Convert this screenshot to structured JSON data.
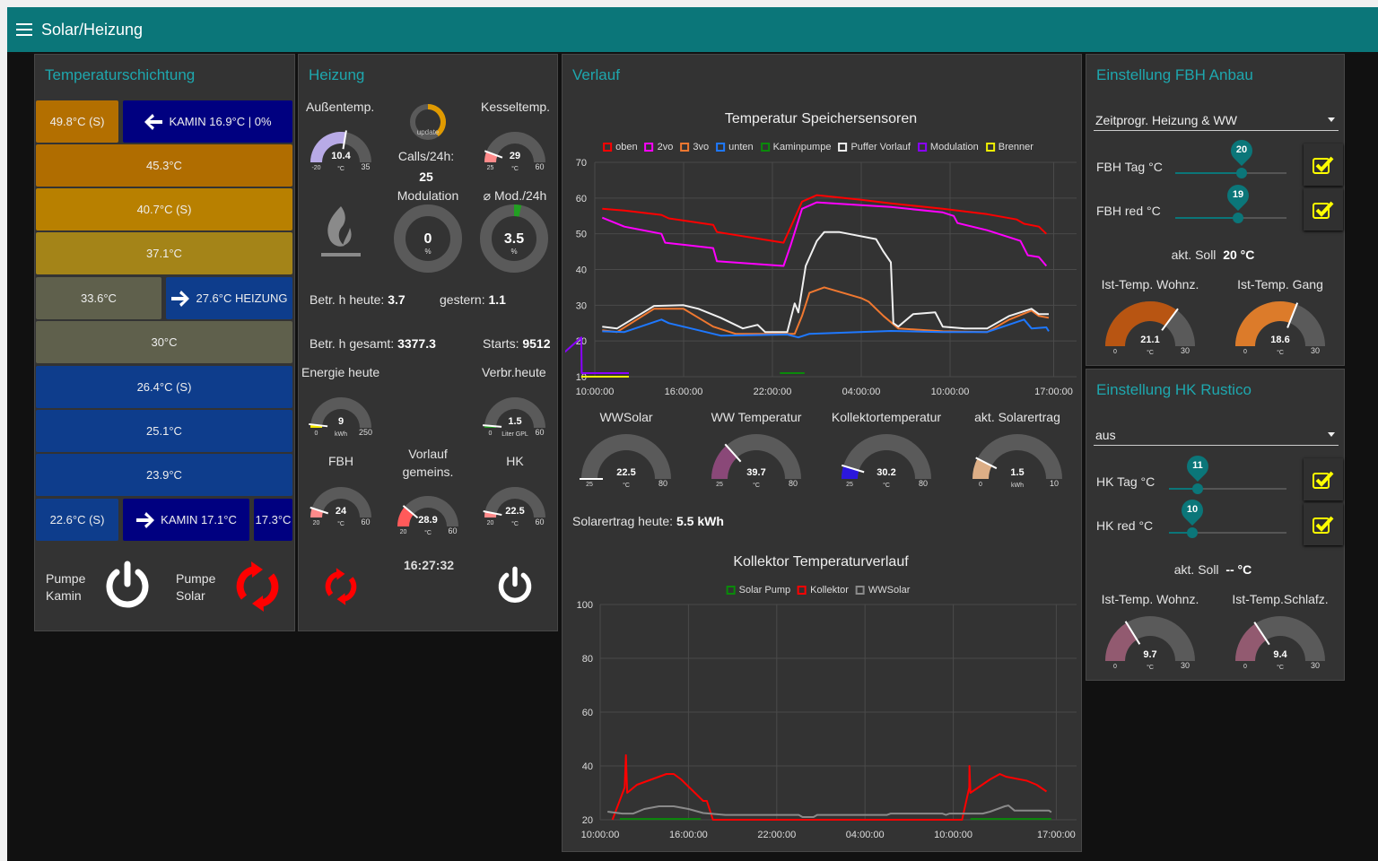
{
  "header": {
    "title": "Solar/Heizung",
    "menu_icon": "hamburger-icon"
  },
  "colors": {
    "accent": "#0b7679",
    "title": "#1ea7ae",
    "panel": "#333333"
  },
  "schichtung": {
    "title": "Temperaturschichtung",
    "row1": {
      "left": "49.8°C (S)",
      "right": "KAMIN 16.9°C | 0%"
    },
    "rows": [
      "45.3°C",
      "40.7°C (S)",
      "37.1°C"
    ],
    "row5": {
      "left": "33.6°C",
      "right": "27.6°C HEIZUNG"
    },
    "row6": "30°C",
    "rows2": [
      "26.4°C (S)",
      "25.1°C",
      "23.9°C"
    ],
    "row10": {
      "left": "22.6°C (S)",
      "mid": "KAMIN 17.1°C",
      "right": "17.3°C"
    },
    "pumpe_kamin": "Pumpe\nKamin",
    "pumpe_solar": "Pumpe\nSolar",
    "pumpe_kamin_state": "off",
    "pumpe_solar_state": "running"
  },
  "heizung": {
    "title": "Heizung",
    "aussen_label": "Außentemp.",
    "kessel_label": "Kesseltemp.",
    "calls_label": "Calls/24h:",
    "calls": "25",
    "update_label": "update",
    "modulation_label": "Modulation",
    "mod24_label": "⌀ Mod./24h",
    "betr_heute_label": "Betr. h heute:",
    "betr_heute": "3.7",
    "gestern_label": "gestern:",
    "gestern": "1.1",
    "betr_gesamt_label": "Betr. h gesamt:",
    "betr_gesamt": "3377.3",
    "starts_label": "Starts:",
    "starts": "9512",
    "energie_label": "Energie heute",
    "verbr_label": "Verbr.heute",
    "fbh_label": "FBH",
    "vorlauf_label": "Vorlauf\ngemeins.",
    "hk_label": "HK",
    "time": "16:27:32",
    "pump_state": "running",
    "burner_power": "off"
  },
  "gauges": {
    "aussen": {
      "value": 10.4,
      "display": "10.4",
      "min": -20,
      "max": 35,
      "unit": "°C",
      "color": "#b8aae6"
    },
    "kessel": {
      "value": 29,
      "display": "29",
      "min": 25,
      "max": 60,
      "unit": "°C",
      "color": "#ff8a8a"
    },
    "energie": {
      "value": 9,
      "display": "9",
      "min": 0,
      "max": 250,
      "unit": "kWh",
      "color": "#f2e600"
    },
    "verbr": {
      "value": 1.5,
      "display": "1.5",
      "min": 0,
      "max": 60,
      "unit": "Liter GPL",
      "color": "#1f9a1f"
    },
    "fbh": {
      "value": 24,
      "display": "24",
      "min": 20,
      "max": 60,
      "unit": "°C",
      "color": "#ff8a8a"
    },
    "vorlauf": {
      "value": 28.9,
      "display": "28.9",
      "min": 20,
      "max": 60,
      "unit": "°C",
      "color": "#ff5a5a"
    },
    "hk": {
      "value": 22.5,
      "display": "22.5",
      "min": 20,
      "max": 60,
      "unit": "°C",
      "color": "#ff8a8a"
    },
    "wwsolar": {
      "value": 22.5,
      "display": "22.5",
      "min": 25,
      "max": 80,
      "unit": "°C",
      "color": "#eeeeee"
    },
    "wwtemp": {
      "value": 39.7,
      "display": "39.7",
      "min": 25,
      "max": 80,
      "unit": "°C",
      "color": "#8a4878"
    },
    "kollektor": {
      "value": 30.2,
      "display": "30.2",
      "min": 25,
      "max": 80,
      "unit": "°C",
      "color": "#2b17dc"
    },
    "solarertrag": {
      "value": 1.5,
      "display": "1.5",
      "min": 0,
      "max": 10,
      "unit": "kWh",
      "color": "#dcae86"
    },
    "fbh_wohnz": {
      "value": 21.1,
      "display": "21.1",
      "min": 0,
      "max": 30,
      "unit": "°C",
      "color": "#b85512"
    },
    "fbh_gang": {
      "value": 18.6,
      "display": "18.6",
      "min": 0,
      "max": 30,
      "unit": "°C",
      "color": "#dc7b2a"
    },
    "hk_wohnz": {
      "value": 9.7,
      "display": "9.7",
      "min": 0,
      "max": 30,
      "unit": "°C",
      "color": "#925a70"
    },
    "hk_schlafz": {
      "value": 9.4,
      "display": "9.4",
      "min": 0,
      "max": 30,
      "unit": "°C",
      "color": "#925a70"
    }
  },
  "donuts": {
    "update": {
      "value": 40,
      "display": "",
      "unit": "",
      "color": "#e09a00"
    },
    "modulation": {
      "value": 0,
      "display": "0",
      "unit": "%",
      "color": "#22a022"
    },
    "mod24": {
      "value": 3.5,
      "display": "3.5",
      "unit": "%",
      "color": "#22a022"
    }
  },
  "verlauf": {
    "title": "Verlauf",
    "ww_labels": {
      "wwsolar": "WWSolar",
      "wwtemp": "WW Temperatur",
      "kollektor": "Kollektortemperatur",
      "solarertrag": "akt. Solarertrag"
    },
    "solar_heute_label": "Solarertrag heute:",
    "solar_heute": "5.5 kWh"
  },
  "chart_data": [
    {
      "type": "line",
      "title": "Temperatur Speichersensoren",
      "ylim": [
        10,
        70
      ],
      "yticks": [
        10,
        20,
        30,
        40,
        50,
        60,
        70
      ],
      "xticks": [
        "10:00:00",
        "16:00:00",
        "22:00:00",
        "04:00:00",
        "10:00:00",
        "17:00:00"
      ],
      "grid": true,
      "legend": "top",
      "series": [
        {
          "name": "oben",
          "color": "#ff0000",
          "points": [
            [
              "10:30",
              57
            ],
            [
              "12:00",
              56.5
            ],
            [
              "14:30",
              55.3
            ],
            [
              "15:00",
              54.3
            ],
            [
              "18:00",
              52.5
            ],
            [
              "18:15",
              50.5
            ],
            [
              "22:45",
              47.5
            ],
            [
              "23:15",
              52
            ],
            [
              "00:00",
              59
            ],
            [
              "01:00",
              60.8
            ],
            [
              "04:00",
              59.5
            ],
            [
              "06:00",
              58.5
            ],
            [
              "09:30",
              57
            ],
            [
              "12:30",
              55.5
            ],
            [
              "14:30",
              54
            ],
            [
              "15:00",
              52.8
            ],
            [
              "16:00",
              52
            ],
            [
              "16:30",
              50
            ]
          ]
        },
        {
          "name": "2vo",
          "color": "#ff00ff",
          "points": [
            [
              "10:30",
              54.5
            ],
            [
              "12:00",
              52
            ],
            [
              "14:30",
              50
            ],
            [
              "14:45",
              47.5
            ],
            [
              "18:00",
              46
            ],
            [
              "18:15",
              42.3
            ],
            [
              "22:45",
              41
            ],
            [
              "23:15",
              47
            ],
            [
              "00:00",
              57
            ],
            [
              "01:00",
              58.8
            ],
            [
              "04:00",
              58
            ],
            [
              "06:00",
              57.5
            ],
            [
              "09:30",
              56
            ],
            [
              "10:15",
              55
            ],
            [
              "10:30",
              53
            ],
            [
              "12:30",
              51
            ],
            [
              "14:00",
              49
            ],
            [
              "14:45",
              48
            ],
            [
              "15:15",
              44
            ],
            [
              "16:00",
              43.5
            ],
            [
              "16:30",
              41
            ]
          ]
        },
        {
          "name": "3vo",
          "color": "#f07830",
          "points": [
            [
              "10:30",
              23
            ],
            [
              "11:30",
              22.5
            ],
            [
              "14:00",
              29
            ],
            [
              "16:00",
              29
            ],
            [
              "18:00",
              24
            ],
            [
              "19:30",
              22
            ],
            [
              "23:30",
              22
            ],
            [
              "00:00",
              27
            ],
            [
              "00:30",
              33.5
            ],
            [
              "01:30",
              35
            ],
            [
              "04:00",
              32
            ],
            [
              "04:30",
              31
            ],
            [
              "05:30",
              27
            ],
            [
              "06:30",
              23.5
            ],
            [
              "09:30",
              22.7
            ],
            [
              "12:30",
              22.5
            ],
            [
              "14:00",
              26
            ],
            [
              "15:30",
              28.5
            ],
            [
              "16:00",
              27
            ],
            [
              "16:40",
              26.5
            ]
          ]
        },
        {
          "name": "unten",
          "color": "#1e78ff",
          "points": [
            [
              "10:30",
              22.7
            ],
            [
              "12:00",
              22.5
            ],
            [
              "14:30",
              26
            ],
            [
              "15:00",
              25
            ],
            [
              "17:00",
              23
            ],
            [
              "18:30",
              21.5
            ],
            [
              "23:00",
              21.8
            ],
            [
              "23:45",
              21
            ],
            [
              "00:30",
              22
            ],
            [
              "06:00",
              22.8
            ],
            [
              "09:30",
              22.5
            ],
            [
              "12:30",
              22.5
            ],
            [
              "15:00",
              26
            ],
            [
              "15:30",
              23.5
            ],
            [
              "16:30",
              23.8
            ],
            [
              "16:40",
              22.7
            ]
          ]
        },
        {
          "name": "Kaminpumpe",
          "color": "#0a8a0a",
          "points": [
            [
              "22:30",
              11
            ],
            [
              "00:10",
              11
            ]
          ]
        },
        {
          "name": "Puffer Vorlauf",
          "color": "#f0f0f0",
          "points": [
            [
              "10:30",
              24
            ],
            [
              "11:30",
              23.5
            ],
            [
              "14:00",
              29.8
            ],
            [
              "16:00",
              30
            ],
            [
              "17:00",
              29
            ],
            [
              "18:30",
              26.5
            ],
            [
              "20:00",
              23.5
            ],
            [
              "21:00",
              24.5
            ],
            [
              "21:30",
              22.5
            ],
            [
              "23:00",
              22.5
            ],
            [
              "23:30",
              30.5
            ],
            [
              "23:45",
              28
            ],
            [
              "00:15",
              41
            ],
            [
              "01:00",
              48
            ],
            [
              "01:30",
              50.5
            ],
            [
              "02:30",
              50.5
            ],
            [
              "05:00",
              48.5
            ],
            [
              "05:30",
              45
            ],
            [
              "06:00",
              42
            ],
            [
              "06:10",
              25
            ],
            [
              "06:30",
              24
            ],
            [
              "07:30",
              27.5
            ],
            [
              "09:00",
              28
            ],
            [
              "09:30",
              24
            ],
            [
              "11:00",
              23.5
            ],
            [
              "12:30",
              23.5
            ],
            [
              "14:00",
              27
            ],
            [
              "15:30",
              29
            ],
            [
              "16:00",
              27.5
            ],
            [
              "16:40",
              27.5
            ]
          ]
        },
        {
          "name": "Modulation",
          "color": "#8a00ff",
          "points": [
            [
              "05:50",
              10
            ],
            [
              "05:55",
              65
            ],
            [
              "06:00",
              10
            ],
            [
              "06:02",
              44
            ],
            [
              "06:05",
              10
            ],
            [
              "09:05",
              21
            ],
            [
              "09:07",
              11
            ],
            [
              "12:18",
              11
            ]
          ]
        },
        {
          "name": "Brenner",
          "color": "#f0f000",
          "points": [
            [
              "09:05",
              10
            ],
            [
              "12:18",
              10
            ]
          ]
        }
      ]
    },
    {
      "type": "line",
      "title": "Kollektor Temperaturverlauf",
      "ylim": [
        20,
        100
      ],
      "yticks": [
        20,
        40,
        60,
        80,
        100
      ],
      "xticks": [
        "10:00:00",
        "16:00:00",
        "22:00:00",
        "04:00:00",
        "10:00:00",
        "17:00:00"
      ],
      "grid": true,
      "legend": "top",
      "series": [
        {
          "name": "Solar Pump",
          "color": "#0a8a0a",
          "points": [
            [
              "11:20",
              20.3
            ],
            [
              "16:50",
              20.3
            ],
            [
              "17:00",
              null
            ],
            [
              "11:10",
              20.3
            ],
            [
              "16:40",
              20.3
            ]
          ]
        },
        {
          "name": "Kollektor",
          "color": "#ff0000",
          "points": [
            [
              "10:50",
              20
            ],
            [
              "11:40",
              32
            ],
            [
              "11:45",
              44
            ],
            [
              "11:50",
              30
            ],
            [
              "12:30",
              33
            ],
            [
              "13:30",
              35
            ],
            [
              "14:30",
              37
            ],
            [
              "15:00",
              37
            ],
            [
              "15:30",
              35
            ],
            [
              "16:15",
              31
            ],
            [
              "17:00",
              27
            ],
            [
              "17:15",
              27
            ],
            [
              "17:40",
              20
            ],
            [
              "10:36",
              20
            ],
            [
              "11:05",
              32
            ],
            [
              "11:06",
              40
            ],
            [
              "11:10",
              30
            ],
            [
              "12:30",
              35
            ],
            [
              "13:10",
              37
            ],
            [
              "13:35",
              36
            ],
            [
              "15:00",
              34.5
            ],
            [
              "15:40",
              33
            ],
            [
              "16:20",
              30.5
            ]
          ]
        },
        {
          "name": "WWSolar",
          "color": "#8a8a8a",
          "points": [
            [
              "10:30",
              23
            ],
            [
              "11:30",
              22.3
            ],
            [
              "12:15",
              22.3
            ],
            [
              "13:00",
              24
            ],
            [
              "14:00",
              25
            ],
            [
              "15:00",
              25
            ],
            [
              "16:00",
              24
            ],
            [
              "17:00",
              22.5
            ],
            [
              "18:30",
              21.8
            ],
            [
              "23:30",
              21.8
            ],
            [
              "23:45",
              21
            ],
            [
              "00:30",
              21
            ],
            [
              "00:45",
              21.8
            ],
            [
              "05:30",
              21.8
            ],
            [
              "05:45",
              22.3
            ],
            [
              "09:15",
              22.3
            ],
            [
              "09:30",
              21.8
            ],
            [
              "09:45",
              22.3
            ],
            [
              "12:00",
              22.3
            ],
            [
              "12:30",
              23
            ],
            [
              "13:30",
              25
            ],
            [
              "13:45",
              25.3
            ],
            [
              "14:10",
              23.4
            ],
            [
              "16:30",
              23.4
            ],
            [
              "16:40",
              22.8
            ]
          ]
        }
      ]
    }
  ],
  "fbh": {
    "title": "Einstellung FBH Anbau",
    "mode": "Zeitprogr. Heizung & WW",
    "tag_label": "FBH Tag °C",
    "tag_value": "20",
    "red_label": "FBH red °C",
    "red_value": "19",
    "soll_label": "akt. Soll",
    "soll": "20 °C",
    "g1_label": "Ist-Temp. Wohnz.",
    "g2_label": "Ist-Temp. Gang",
    "tag_checked": true,
    "red_checked": true
  },
  "hkr": {
    "title": "Einstellung HK Rustico",
    "mode": "aus",
    "tag_label": "HK Tag °C",
    "tag_value": "11",
    "red_label": "HK red °C",
    "red_value": "10",
    "soll_label": "akt. Soll",
    "soll": "-- °C",
    "g1_label": "Ist-Temp. Wohnz.",
    "g2_label": "Ist-Temp.Schlafz.",
    "tag_checked": true,
    "red_checked": true
  }
}
